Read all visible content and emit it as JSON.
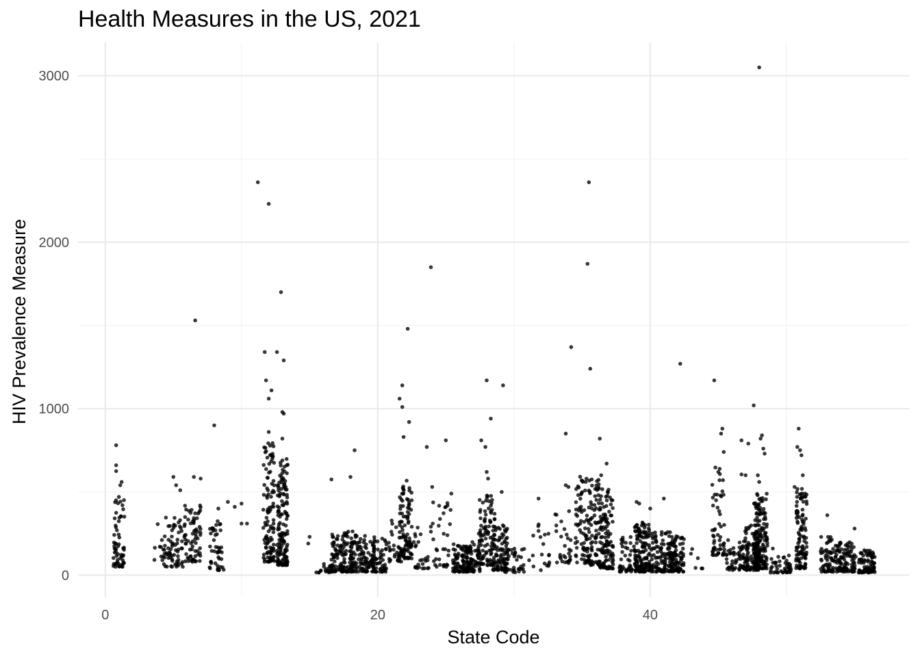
{
  "chart_data": {
    "type": "scatter",
    "title": "Health Measures in the US, 2021",
    "xlabel": "State Code",
    "ylabel": "HIV Prevalence Measure",
    "xlim": [
      -2,
      59
    ],
    "ylim": [
      -130,
      3200
    ],
    "x_ticks": [
      0,
      20,
      40
    ],
    "y_ticks": [
      0,
      1000,
      2000,
      3000
    ],
    "grid": true,
    "legend": "none",
    "point_color": "#000000",
    "outliers": [
      {
        "x": 0.8,
        "y": 780
      },
      {
        "x": 0.8,
        "y": 660
      },
      {
        "x": 0.8,
        "y": 625
      },
      {
        "x": 1.2,
        "y": 560
      },
      {
        "x": 1.1,
        "y": 540
      },
      {
        "x": 1.0,
        "y": 470
      },
      {
        "x": 5.0,
        "y": 590
      },
      {
        "x": 5.2,
        "y": 540
      },
      {
        "x": 5.5,
        "y": 510
      },
      {
        "x": 6.5,
        "y": 590
      },
      {
        "x": 7.0,
        "y": 580
      },
      {
        "x": 6.6,
        "y": 1530
      },
      {
        "x": 8.0,
        "y": 900
      },
      {
        "x": 8.3,
        "y": 400
      },
      {
        "x": 9.0,
        "y": 440
      },
      {
        "x": 9.5,
        "y": 410
      },
      {
        "x": 10.0,
        "y": 430
      },
      {
        "x": 10.0,
        "y": 310
      },
      {
        "x": 10.4,
        "y": 310
      },
      {
        "x": 11.2,
        "y": 2360
      },
      {
        "x": 12.0,
        "y": 2230
      },
      {
        "x": 11.7,
        "y": 1340
      },
      {
        "x": 12.2,
        "y": 1110
      },
      {
        "x": 11.8,
        "y": 1170
      },
      {
        "x": 12.0,
        "y": 1060
      },
      {
        "x": 12.6,
        "y": 1340
      },
      {
        "x": 12.9,
        "y": 1700
      },
      {
        "x": 13.1,
        "y": 1290
      },
      {
        "x": 13.0,
        "y": 980
      },
      {
        "x": 13.1,
        "y": 970
      },
      {
        "x": 12.0,
        "y": 860
      },
      {
        "x": 13.0,
        "y": 820
      },
      {
        "x": 15.0,
        "y": 230
      },
      {
        "x": 14.9,
        "y": 190
      },
      {
        "x": 16.6,
        "y": 575
      },
      {
        "x": 18.0,
        "y": 590
      },
      {
        "x": 18.3,
        "y": 750
      },
      {
        "x": 21.8,
        "y": 1140
      },
      {
        "x": 21.6,
        "y": 1060
      },
      {
        "x": 21.8,
        "y": 1010
      },
      {
        "x": 22.2,
        "y": 1480
      },
      {
        "x": 22.3,
        "y": 920
      },
      {
        "x": 21.9,
        "y": 830
      },
      {
        "x": 23.9,
        "y": 1850
      },
      {
        "x": 23.6,
        "y": 770
      },
      {
        "x": 25.0,
        "y": 810
      },
      {
        "x": 24.0,
        "y": 530
      },
      {
        "x": 25.4,
        "y": 490
      },
      {
        "x": 28.0,
        "y": 1170
      },
      {
        "x": 28.3,
        "y": 940
      },
      {
        "x": 29.2,
        "y": 1140
      },
      {
        "x": 27.6,
        "y": 810
      },
      {
        "x": 27.9,
        "y": 770
      },
      {
        "x": 28.0,
        "y": 620
      },
      {
        "x": 28.1,
        "y": 580
      },
      {
        "x": 29.1,
        "y": 500
      },
      {
        "x": 31.8,
        "y": 460
      },
      {
        "x": 33.8,
        "y": 850
      },
      {
        "x": 34.2,
        "y": 1370
      },
      {
        "x": 33.8,
        "y": 540
      },
      {
        "x": 34.0,
        "y": 530
      },
      {
        "x": 35.5,
        "y": 2360
      },
      {
        "x": 35.4,
        "y": 1870
      },
      {
        "x": 35.6,
        "y": 1240
      },
      {
        "x": 36.3,
        "y": 820
      },
      {
        "x": 36.8,
        "y": 670
      },
      {
        "x": 36.4,
        "y": 600
      },
      {
        "x": 39.0,
        "y": 440
      },
      {
        "x": 39.2,
        "y": 430
      },
      {
        "x": 40.0,
        "y": 400
      },
      {
        "x": 41.0,
        "y": 460
      },
      {
        "x": 42.2,
        "y": 1270
      },
      {
        "x": 44.7,
        "y": 1170
      },
      {
        "x": 45.3,
        "y": 880
      },
      {
        "x": 45.2,
        "y": 850
      },
      {
        "x": 45.4,
        "y": 740
      },
      {
        "x": 45.0,
        "y": 620
      },
      {
        "x": 46.7,
        "y": 810
      },
      {
        "x": 46.7,
        "y": 605
      },
      {
        "x": 47.0,
        "y": 600
      },
      {
        "x": 47.2,
        "y": 790
      },
      {
        "x": 47.6,
        "y": 1020
      },
      {
        "x": 48.0,
        "y": 3050
      },
      {
        "x": 48.2,
        "y": 840
      },
      {
        "x": 48.1,
        "y": 820
      },
      {
        "x": 48.3,
        "y": 760
      },
      {
        "x": 48.4,
        "y": 730
      },
      {
        "x": 47.9,
        "y": 600
      },
      {
        "x": 48.0,
        "y": 560
      },
      {
        "x": 49.0,
        "y": 160
      },
      {
        "x": 50.9,
        "y": 880
      },
      {
        "x": 50.8,
        "y": 770
      },
      {
        "x": 51.0,
        "y": 750
      },
      {
        "x": 51.1,
        "y": 720
      },
      {
        "x": 51.2,
        "y": 600
      },
      {
        "x": 50.6,
        "y": 530
      },
      {
        "x": 53.0,
        "y": 360
      },
      {
        "x": 55.0,
        "y": 280
      }
    ],
    "clusters": [
      {
        "x": 1.0,
        "n": 60,
        "ymax": 480,
        "ymin": 50,
        "spread": 0.8
      },
      {
        "x": 3.8,
        "n": 10,
        "ymax": 310,
        "ymin": 80,
        "spread": 1.0
      },
      {
        "x": 5.0,
        "n": 65,
        "ymax": 350,
        "ymin": 50,
        "spread": 1.4
      },
      {
        "x": 6.4,
        "n": 70,
        "ymax": 440,
        "ymin": 80,
        "spread": 1.2
      },
      {
        "x": 8.2,
        "n": 45,
        "ymax": 330,
        "ymin": 30,
        "spread": 1.1
      },
      {
        "x": 12.0,
        "n": 110,
        "ymax": 800,
        "ymin": 80,
        "spread": 0.8
      },
      {
        "x": 13.0,
        "n": 150,
        "ymax": 700,
        "ymin": 60,
        "spread": 0.8
      },
      {
        "x": 16.0,
        "n": 20,
        "ymax": 70,
        "ymin": 15,
        "spread": 1.2
      },
      {
        "x": 17.4,
        "n": 120,
        "ymax": 280,
        "ymin": 20,
        "spread": 1.6
      },
      {
        "x": 18.9,
        "n": 120,
        "ymax": 250,
        "ymin": 20,
        "spread": 1.8
      },
      {
        "x": 20.2,
        "n": 50,
        "ymax": 230,
        "ymin": 20,
        "spread": 1.0
      },
      {
        "x": 21.3,
        "n": 30,
        "ymax": 330,
        "ymin": 80,
        "spread": 1.2
      },
      {
        "x": 22.0,
        "n": 100,
        "ymax": 600,
        "ymin": 100,
        "spread": 1.0
      },
      {
        "x": 23.2,
        "n": 25,
        "ymax": 300,
        "ymin": 40,
        "spread": 1.2
      },
      {
        "x": 24.6,
        "n": 35,
        "ymax": 440,
        "ymin": 50,
        "spread": 1.6
      },
      {
        "x": 26.2,
        "n": 90,
        "ymax": 190,
        "ymin": 20,
        "spread": 1.4
      },
      {
        "x": 27.0,
        "n": 60,
        "ymax": 200,
        "ymin": 20,
        "spread": 1.0
      },
      {
        "x": 28.0,
        "n": 100,
        "ymax": 480,
        "ymin": 60,
        "spread": 1.2
      },
      {
        "x": 29.0,
        "n": 90,
        "ymax": 300,
        "ymin": 30,
        "spread": 1.1
      },
      {
        "x": 30.0,
        "n": 40,
        "ymax": 160,
        "ymin": 15,
        "spread": 1.6
      },
      {
        "x": 31.8,
        "n": 20,
        "ymax": 320,
        "ymin": 30,
        "spread": 1.6
      },
      {
        "x": 33.6,
        "n": 30,
        "ymax": 450,
        "ymin": 70,
        "spread": 1.2
      },
      {
        "x": 35.4,
        "n": 150,
        "ymax": 600,
        "ymin": 60,
        "spread": 1.8
      },
      {
        "x": 36.8,
        "n": 120,
        "ymax": 520,
        "ymin": 40,
        "spread": 1.0
      },
      {
        "x": 38.2,
        "n": 40,
        "ymax": 230,
        "ymin": 20,
        "spread": 1.0
      },
      {
        "x": 39.4,
        "n": 140,
        "ymax": 320,
        "ymin": 20,
        "spread": 1.2
      },
      {
        "x": 40.8,
        "n": 110,
        "ymax": 260,
        "ymin": 20,
        "spread": 1.6
      },
      {
        "x": 42.0,
        "n": 90,
        "ymax": 240,
        "ymin": 20,
        "spread": 1.0
      },
      {
        "x": 43.5,
        "n": 6,
        "ymax": 170,
        "ymin": 30,
        "spread": 1.4
      },
      {
        "x": 45.0,
        "n": 55,
        "ymax": 650,
        "ymin": 120,
        "spread": 0.9
      },
      {
        "x": 46.4,
        "n": 55,
        "ymax": 220,
        "ymin": 30,
        "spread": 1.6
      },
      {
        "x": 47.4,
        "n": 100,
        "ymax": 300,
        "ymin": 30,
        "spread": 1.2
      },
      {
        "x": 48.1,
        "n": 160,
        "ymax": 500,
        "ymin": 40,
        "spread": 1.0
      },
      {
        "x": 49.6,
        "n": 45,
        "ymax": 120,
        "ymin": 15,
        "spread": 1.6
      },
      {
        "x": 51.1,
        "n": 110,
        "ymax": 520,
        "ymin": 40,
        "spread": 0.8
      },
      {
        "x": 53.2,
        "n": 80,
        "ymax": 230,
        "ymin": 20,
        "spread": 1.4
      },
      {
        "x": 54.5,
        "n": 80,
        "ymax": 200,
        "ymin": 20,
        "spread": 1.2
      },
      {
        "x": 55.9,
        "n": 90,
        "ymax": 150,
        "ymin": 15,
        "spread": 1.2
      }
    ]
  }
}
